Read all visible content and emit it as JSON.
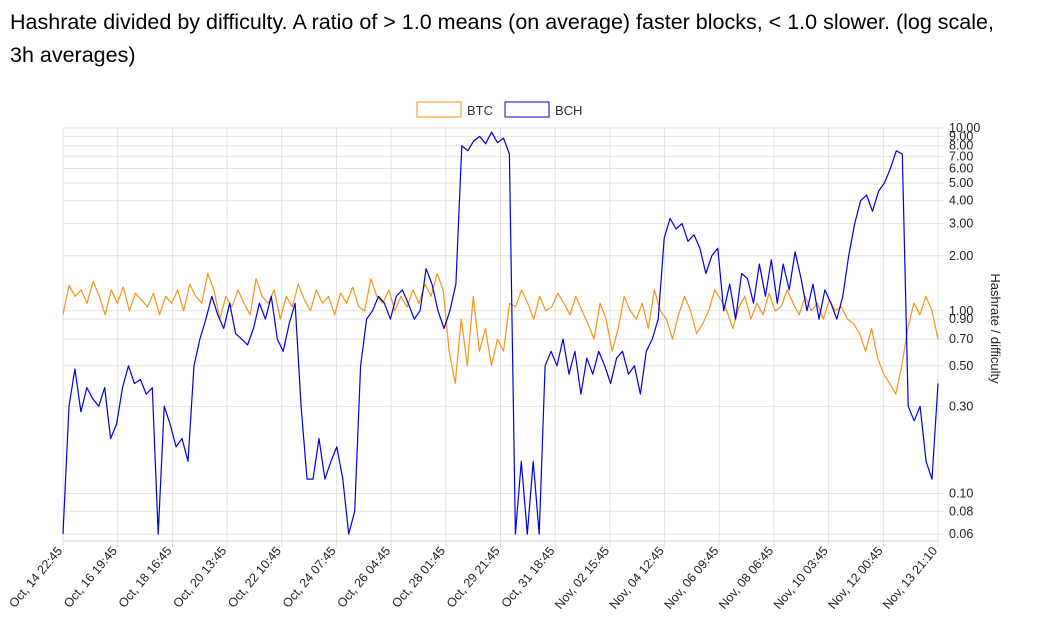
{
  "heading": "Hashrate divided by difficulty. A ratio of > 1.0 means (on average) faster blocks, < 1.0 slower. (log scale, 3h averages)",
  "chart_data": {
    "type": "line",
    "ylabel": "Hashrate / difficulty",
    "yscale": "log",
    "ylim": [
      0.055,
      10
    ],
    "y_ticks": [
      "10.00",
      "9.00",
      "8.00",
      "7.00",
      "6.00",
      "5.00",
      "4.00",
      "3.00",
      "2.00",
      "1.00",
      "0.90",
      "0.70",
      "0.50",
      "0.30",
      "0.10",
      "0.08",
      "0.06"
    ],
    "x_ticks": [
      "Oct, 14 22:45",
      "Oct, 16 19:45",
      "Oct, 18 16:45",
      "Oct, 20 13:45",
      "Oct, 22 10:45",
      "Oct, 24 07:45",
      "Oct, 26 04:45",
      "Oct, 28 01:45",
      "Oct, 29 21:45",
      "Oct, 31 18:45",
      "Nov, 02 15:45",
      "Nov, 04 12:45",
      "Nov, 06 09:45",
      "Nov, 08 06:45",
      "Nov, 10 03:45",
      "Nov, 12 00:45",
      "Nov, 13 21:10"
    ],
    "legend_position": "top-center",
    "grid": true,
    "series": [
      {
        "name": "BTC",
        "color": "#f7931a",
        "values": [
          0.95,
          1.38,
          1.2,
          1.3,
          1.1,
          1.45,
          1.2,
          0.95,
          1.3,
          1.1,
          1.35,
          1.0,
          1.25,
          1.15,
          1.05,
          1.25,
          0.95,
          1.2,
          1.1,
          1.3,
          1.0,
          1.4,
          1.2,
          1.1,
          1.6,
          1.3,
          0.9,
          1.2,
          1.05,
          1.3,
          1.1,
          0.95,
          1.5,
          1.2,
          1.1,
          1.3,
          0.9,
          1.2,
          1.05,
          1.4,
          1.15,
          1.0,
          1.3,
          1.1,
          1.2,
          0.95,
          1.25,
          1.1,
          1.35,
          1.05,
          1.0,
          1.5,
          1.2,
          1.1,
          1.3,
          1.0,
          1.2,
          1.05,
          1.3,
          1.1,
          1.4,
          1.2,
          1.6,
          1.3,
          0.6,
          0.4,
          0.9,
          0.5,
          1.2,
          0.6,
          0.8,
          0.5,
          0.7,
          0.6,
          1.1,
          1.05,
          1.3,
          1.1,
          0.9,
          1.2,
          1.0,
          1.05,
          1.25,
          1.1,
          0.95,
          1.2,
          1.0,
          0.85,
          0.7,
          1.1,
          0.9,
          0.6,
          0.8,
          1.2,
          1.0,
          0.9,
          1.1,
          0.8,
          1.3,
          1.0,
          0.9,
          0.7,
          0.95,
          1.2,
          1.0,
          0.75,
          0.85,
          1.0,
          1.3,
          1.15,
          1.0,
          0.8,
          1.05,
          1.2,
          0.9,
          1.1,
          0.95,
          1.25,
          1.0,
          1.05,
          1.3,
          1.1,
          0.95,
          1.2,
          1.0,
          1.1,
          0.9,
          1.15,
          1.0,
          1.05,
          0.9,
          0.85,
          0.75,
          0.6,
          0.8,
          0.55,
          0.45,
          0.4,
          0.35,
          0.5,
          0.8,
          1.1,
          0.95,
          1.2,
          1.0,
          0.7
        ]
      },
      {
        "name": "BCH",
        "color": "#0000dd",
        "values": [
          0.06,
          0.3,
          0.48,
          0.28,
          0.38,
          0.33,
          0.3,
          0.38,
          0.2,
          0.24,
          0.38,
          0.5,
          0.4,
          0.42,
          0.35,
          0.38,
          0.06,
          0.3,
          0.24,
          0.18,
          0.2,
          0.15,
          0.5,
          0.7,
          0.9,
          1.2,
          0.95,
          0.8,
          1.1,
          0.75,
          0.7,
          0.65,
          0.8,
          1.1,
          0.9,
          1.2,
          0.7,
          0.6,
          0.85,
          1.1,
          0.3,
          0.12,
          0.12,
          0.2,
          0.12,
          0.15,
          0.18,
          0.12,
          0.06,
          0.08,
          0.5,
          0.9,
          1.0,
          1.2,
          1.1,
          0.9,
          1.2,
          1.3,
          1.1,
          0.9,
          1.0,
          1.7,
          1.4,
          1.0,
          0.8,
          1.0,
          1.4,
          8.0,
          7.5,
          8.5,
          9.0,
          8.2,
          9.5,
          8.3,
          8.8,
          7.2,
          0.06,
          0.15,
          0.06,
          0.15,
          0.06,
          0.5,
          0.6,
          0.5,
          0.7,
          0.45,
          0.6,
          0.35,
          0.55,
          0.45,
          0.6,
          0.5,
          0.4,
          0.55,
          0.6,
          0.45,
          0.5,
          0.35,
          0.6,
          0.7,
          0.9,
          2.5,
          3.2,
          2.8,
          3.0,
          2.4,
          2.6,
          2.2,
          1.6,
          2.0,
          2.2,
          1.0,
          1.4,
          0.9,
          1.6,
          1.5,
          1.1,
          1.8,
          1.2,
          1.9,
          1.1,
          1.8,
          1.3,
          2.1,
          1.5,
          1.0,
          1.4,
          0.9,
          1.3,
          1.1,
          0.9,
          1.2,
          2.0,
          3.0,
          4.0,
          4.3,
          3.5,
          4.5,
          5.0,
          6.0,
          7.5,
          7.2,
          0.3,
          0.25,
          0.3,
          0.15,
          0.12,
          0.4
        ]
      }
    ]
  }
}
